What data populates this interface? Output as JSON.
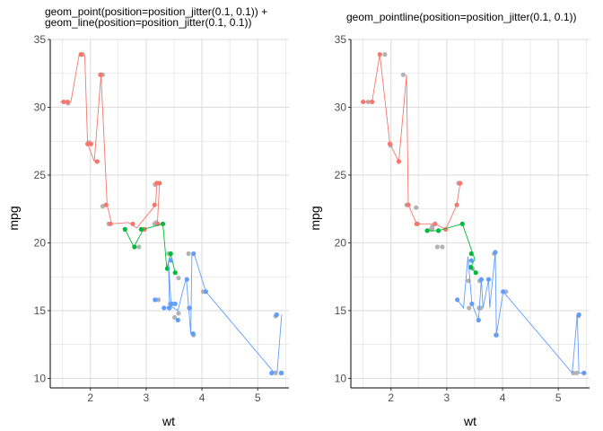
{
  "chart_data": [
    {
      "type": "scatter",
      "title_lines": [
        "geom_point(position=position_jitter(0.1, 0.1)) +",
        "geom_line(position=position_jitter(0.1, 0.1))"
      ],
      "xlabel": "wt",
      "ylabel": "mpg",
      "xlim": [
        1.28,
        5.56
      ],
      "ylim": [
        9.3,
        35.0
      ],
      "xticks": [
        2,
        3,
        4,
        5
      ],
      "yticks": [
        10,
        15,
        20,
        25,
        30,
        35
      ],
      "grid": true,
      "legend": "none",
      "series": [
        {
          "color": "#f8766d",
          "points": [
            [
              1.52,
              30.4
            ],
            [
              1.59,
              30.4
            ],
            [
              1.83,
              33.9
            ],
            [
              1.95,
              27.3
            ],
            [
              2.01,
              27.3
            ],
            [
              2.12,
              26.0
            ],
            [
              2.18,
              32.4
            ],
            [
              2.28,
              22.8
            ],
            [
              2.36,
              21.4
            ],
            [
              2.76,
              21.4
            ],
            [
              2.97,
              21.0
            ],
            [
              3.15,
              22.8
            ],
            [
              3.19,
              24.4
            ],
            [
              3.21,
              21.4
            ],
            [
              3.24,
              24.4
            ]
          ],
          "line": [
            [
              1.46,
              30.4
            ],
            [
              1.65,
              30.4
            ],
            [
              1.8,
              33.9
            ],
            [
              1.9,
              33.8
            ],
            [
              1.95,
              27.3
            ],
            [
              2.07,
              26.0
            ],
            [
              2.19,
              32.4
            ],
            [
              2.3,
              22.8
            ],
            [
              2.38,
              21.4
            ],
            [
              2.68,
              21.5
            ],
            [
              2.83,
              21.1
            ],
            [
              3.17,
              22.8
            ],
            [
              3.19,
              24.4
            ],
            [
              3.24,
              24.4
            ],
            [
              3.2,
              21.3
            ]
          ]
        },
        {
          "color": "#00ba38",
          "points": [
            [
              2.62,
              21.0
            ],
            [
              2.79,
              19.7
            ],
            [
              2.91,
              21.0
            ],
            [
              3.3,
              21.4
            ],
            [
              3.38,
              18.1
            ],
            [
              3.44,
              19.2
            ],
            [
              3.52,
              17.8
            ]
          ],
          "line": [
            [
              2.62,
              21.0
            ],
            [
              2.78,
              19.7
            ],
            [
              2.95,
              21.0
            ],
            [
              3.3,
              21.4
            ],
            [
              3.37,
              18.1
            ],
            [
              3.44,
              19.2
            ],
            [
              3.52,
              17.8
            ]
          ]
        },
        {
          "color": "#619cff",
          "points": [
            [
              3.16,
              15.8
            ],
            [
              3.32,
              15.2
            ],
            [
              3.41,
              15.2
            ],
            [
              3.44,
              18.7
            ],
            [
              3.46,
              15.5
            ],
            [
              3.52,
              15.5
            ],
            [
              3.57,
              14.3
            ],
            [
              3.73,
              17.3
            ],
            [
              3.78,
              15.2
            ],
            [
              3.84,
              13.3
            ],
            [
              3.85,
              19.2
            ],
            [
              4.07,
              16.4
            ],
            [
              5.25,
              10.4
            ],
            [
              5.34,
              14.7
            ],
            [
              5.42,
              10.4
            ]
          ],
          "line": [
            [
              3.42,
              15.0
            ],
            [
              3.4,
              18.5
            ],
            [
              3.45,
              15.3
            ],
            [
              3.57,
              15.0
            ],
            [
              3.66,
              16.5
            ],
            [
              3.72,
              17.4
            ],
            [
              3.8,
              13.3
            ],
            [
              3.82,
              19.2
            ],
            [
              3.86,
              19.2
            ],
            [
              4.07,
              16.4
            ],
            [
              5.28,
              10.5
            ],
            [
              5.35,
              10.5
            ],
            [
              5.43,
              14.7
            ]
          ]
        }
      ]
    },
    {
      "type": "scatter",
      "title_lines": [
        "geom_pointline(position=position_jitter(0.1, 0.1))"
      ],
      "xlabel": "wt",
      "ylabel": "mpg",
      "xlim": [
        1.28,
        5.56
      ],
      "ylim": [
        9.3,
        35.0
      ],
      "xticks": [
        2,
        3,
        4,
        5
      ],
      "yticks": [
        10,
        15,
        20,
        25,
        30,
        35
      ],
      "grid": true,
      "legend": "none",
      "series": [
        {
          "color": "#f8766d",
          "points": [
            [
              1.5,
              30.4
            ],
            [
              1.66,
              30.4
            ],
            [
              1.8,
              33.9
            ],
            [
              1.98,
              27.3
            ],
            [
              2.14,
              26.0
            ],
            [
              2.31,
              22.8
            ],
            [
              2.46,
              21.4
            ],
            [
              2.79,
              21.4
            ],
            [
              2.98,
              21.0
            ],
            [
              3.18,
              22.8
            ],
            [
              3.24,
              24.4
            ]
          ],
          "line": [
            [
              1.5,
              30.4
            ],
            [
              1.66,
              30.4
            ],
            [
              1.8,
              33.9
            ],
            [
              1.98,
              27.3
            ],
            [
              2.14,
              26.0
            ],
            [
              2.28,
              32.4
            ],
            [
              2.31,
              22.8
            ],
            [
              2.46,
              21.4
            ],
            [
              2.79,
              21.4
            ],
            [
              2.98,
              21.0
            ],
            [
              3.18,
              22.8
            ],
            [
              3.24,
              24.4
            ]
          ]
        },
        {
          "color": "#00ba38",
          "points": [
            [
              2.65,
              20.9
            ],
            [
              2.85,
              20.9
            ],
            [
              3.28,
              21.4
            ],
            [
              3.43,
              18.2
            ],
            [
              3.44,
              19.2
            ],
            [
              3.52,
              17.8
            ]
          ],
          "line": [
            [
              2.65,
              20.9
            ],
            [
              2.85,
              20.9
            ],
            [
              3.28,
              21.4
            ],
            [
              3.5,
              18.8
            ],
            [
              3.43,
              18.2
            ],
            [
              3.52,
              17.8
            ]
          ]
        },
        {
          "color": "#619cff",
          "points": [
            [
              3.19,
              15.8
            ],
            [
              3.44,
              18.7
            ],
            [
              3.45,
              15.5
            ],
            [
              3.57,
              14.3
            ],
            [
              3.62,
              17.3
            ],
            [
              3.75,
              17.3
            ],
            [
              3.87,
              19.3
            ],
            [
              3.89,
              13.2
            ],
            [
              4.01,
              16.4
            ],
            [
              5.37,
              14.7
            ],
            [
              5.46,
              10.4
            ]
          ],
          "line": [
            [
              3.19,
              15.8
            ],
            [
              3.3,
              15.2
            ],
            [
              3.38,
              19.0
            ],
            [
              3.45,
              15.5
            ],
            [
              3.57,
              14.3
            ],
            [
              3.62,
              17.3
            ],
            [
              3.65,
              15.2
            ],
            [
              3.75,
              17.3
            ],
            [
              3.77,
              15.2
            ],
            [
              3.87,
              19.3
            ],
            [
              3.89,
              13.2
            ],
            [
              4.01,
              16.4
            ],
            [
              5.25,
              10.4
            ],
            [
              5.34,
              14.7
            ],
            [
              5.37,
              10.4
            ],
            [
              5.46,
              10.4
            ]
          ]
        }
      ]
    }
  ],
  "overlap_points": [
    [
      [
        1.86,
        33.9
      ],
      [
        2.22,
        32.4
      ],
      [
        2.96,
        21.0
      ],
      [
        3.16,
        24.3
      ],
      [
        3.15,
        21.4
      ],
      [
        3.4,
        19.2
      ],
      [
        3.42,
        15.2
      ],
      [
        3.77,
        15.2
      ],
      [
        3.76,
        19.2
      ],
      [
        5.32,
        14.6
      ],
      [
        5.32,
        10.4
      ],
      [
        5.43,
        10.4
      ],
      [
        3.22,
        15.8
      ],
      [
        3.85,
        13.2
      ],
      [
        3.58,
        17.4
      ],
      [
        3.51,
        14.5
      ],
      [
        3.43,
        15.5
      ],
      [
        2.33,
        21.4
      ],
      [
        1.6,
        30.3
      ],
      [
        1.97,
        27.4
      ],
      [
        2.87,
        19.7
      ],
      [
        2.22,
        22.7
      ],
      [
        3.58,
        14.8
      ],
      [
        4.02,
        16.4
      ],
      [
        3.18,
        21.5
      ]
    ],
    [
      [
        1.59,
        30.4
      ],
      [
        1.89,
        33.9
      ],
      [
        2.22,
        32.4
      ],
      [
        2.28,
        22.8
      ],
      [
        2.48,
        21.4
      ],
      [
        2.72,
        21.0
      ],
      [
        2.74,
        21.0
      ],
      [
        2.83,
        19.7
      ],
      [
        2.92,
        19.7
      ],
      [
        3.21,
        24.4
      ],
      [
        3.39,
        17.2
      ],
      [
        3.4,
        15.2
      ],
      [
        3.46,
        18.1
      ],
      [
        3.59,
        17.2
      ],
      [
        3.61,
        15.2
      ],
      [
        3.88,
        13.2
      ],
      [
        4.06,
        16.4
      ],
      [
        5.27,
        10.4
      ],
      [
        5.33,
        10.4
      ],
      [
        1.99,
        27.2
      ],
      [
        2.74,
        21.2
      ],
      [
        2.45,
        22.6
      ],
      [
        3.58,
        15.2
      ],
      [
        5.36,
        14.6
      ],
      [
        3.85,
        19.2
      ]
    ]
  ],
  "colors": {
    "overlap_point": "#b3b3b3",
    "grid": "#dedede",
    "axis": "#000000"
  }
}
